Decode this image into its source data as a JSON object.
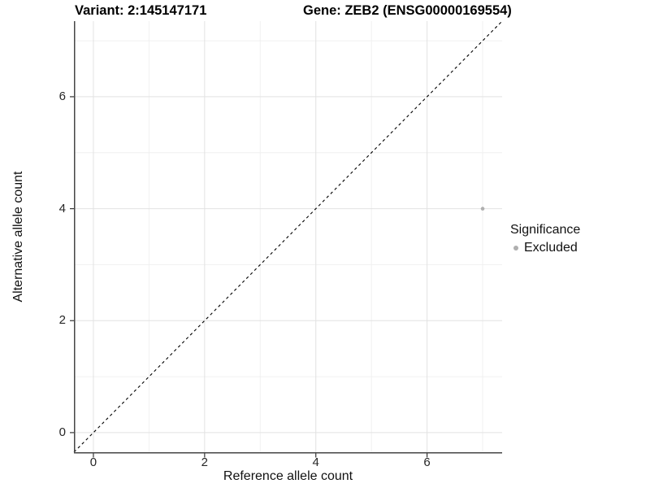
{
  "titles": {
    "left": "Variant: 2:145147171",
    "right": "Gene: ZEB2 (ENSG00000169554)"
  },
  "axes": {
    "x": {
      "label": "Reference allele count"
    },
    "y": {
      "label": "Alternative allele count"
    }
  },
  "legend": {
    "title": "Significance",
    "items": [
      {
        "label": "Excluded",
        "color": "#afafaf"
      }
    ]
  },
  "colors": {
    "grid_major": "#e2e2e2",
    "grid_minor": "#f0f0f0",
    "axis_line": "#464646",
    "tick_mark": "#333333",
    "reference_line": "#000000"
  },
  "chart_data": {
    "type": "scatter",
    "title": "Variant: 2:145147171 | Gene: ZEB2 (ENSG00000169554)",
    "xlabel": "Reference allele count",
    "ylabel": "Alternative allele count",
    "xlim": [
      -0.35,
      7.35
    ],
    "ylim": [
      -0.35,
      7.35
    ],
    "x_ticks": [
      0,
      2,
      4,
      6
    ],
    "y_ticks": [
      0,
      2,
      4,
      6
    ],
    "x_minor_ticks": [
      1,
      3,
      5,
      7
    ],
    "y_minor_ticks": [
      1,
      3,
      5,
      7
    ],
    "grid": true,
    "legend_position": "right",
    "series": [
      {
        "name": "Excluded",
        "color": "#afafaf",
        "points": [
          {
            "x": 7,
            "y": 4
          }
        ]
      }
    ],
    "reference_line": {
      "type": "identity y=x",
      "style": "dashed",
      "from": [
        -0.35,
        -0.35
      ],
      "to": [
        7.35,
        7.35
      ]
    }
  }
}
